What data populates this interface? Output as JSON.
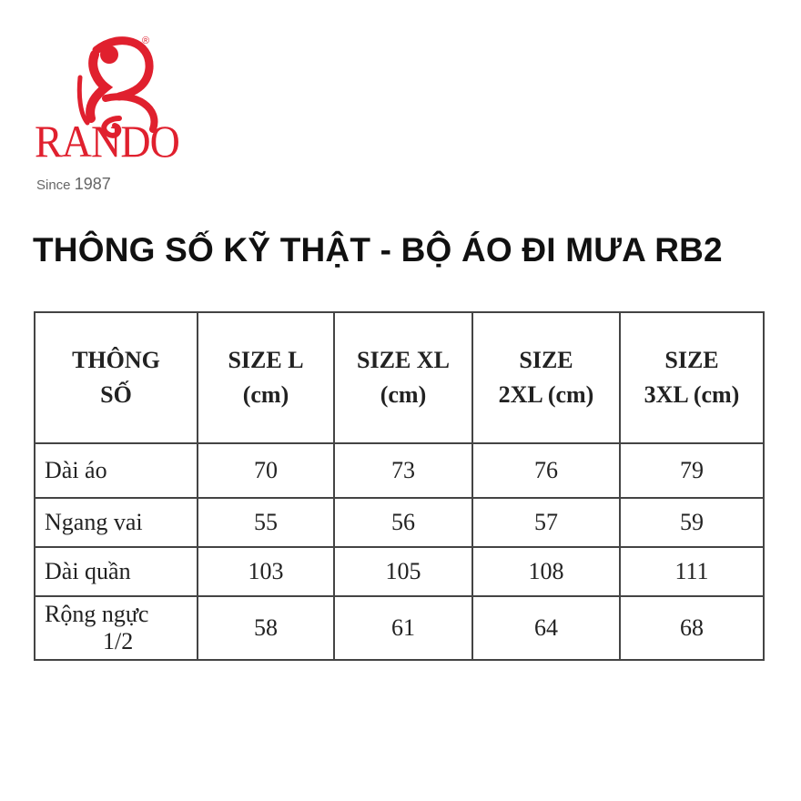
{
  "logo": {
    "brand": "RANDO",
    "since_label": "Since",
    "since_year": "1987",
    "registered": "®",
    "brand_color": "#e0202e"
  },
  "title": "THÔNG SỐ KỸ THẬT - BỘ ÁO ĐI MƯA RB2",
  "table": {
    "headers": [
      [
        "THÔNG",
        "SỐ"
      ],
      [
        "SIZE L",
        "(cm)"
      ],
      [
        "SIZE XL",
        "(cm)"
      ],
      [
        "SIZE",
        "2XL (cm)"
      ],
      [
        "SIZE",
        "3XL (cm)"
      ]
    ],
    "rows": [
      {
        "label": [
          "Dài áo"
        ],
        "values": [
          "70",
          "73",
          "76",
          "79"
        ]
      },
      {
        "label": [
          "Ngang vai"
        ],
        "values": [
          "55",
          "56",
          "57",
          "59"
        ]
      },
      {
        "label": [
          "Dài quần"
        ],
        "values": [
          "103",
          "105",
          "108",
          "111"
        ]
      },
      {
        "label": [
          "Rộng ngực",
          "1/2"
        ],
        "values": [
          "58",
          "61",
          "64",
          "68"
        ]
      }
    ]
  }
}
